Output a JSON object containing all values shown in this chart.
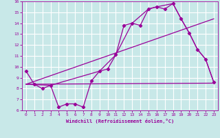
{
  "title": "",
  "xlabel": "Windchill (Refroidissement éolien,°C)",
  "background_color": "#c8e8e8",
  "grid_color": "#ffffff",
  "line_color": "#990099",
  "xlim": [
    -0.5,
    23.5
  ],
  "ylim": [
    6,
    16
  ],
  "xticks": [
    0,
    1,
    2,
    3,
    4,
    5,
    6,
    7,
    8,
    9,
    10,
    11,
    12,
    13,
    14,
    15,
    16,
    17,
    18,
    19,
    20,
    21,
    22,
    23
  ],
  "yticks": [
    6,
    7,
    8,
    9,
    10,
    11,
    12,
    13,
    14,
    15,
    16
  ],
  "series1_x": [
    0,
    1,
    2,
    3,
    4,
    5,
    6,
    7,
    8,
    9,
    10,
    11,
    12,
    13,
    14,
    15,
    16,
    17,
    18,
    19,
    20,
    21,
    22,
    23
  ],
  "series1_y": [
    9.6,
    8.4,
    8.0,
    8.3,
    6.3,
    6.6,
    6.6,
    6.3,
    8.7,
    9.6,
    9.8,
    11.1,
    13.8,
    14.0,
    13.8,
    15.3,
    15.5,
    15.3,
    15.8,
    14.4,
    13.1,
    11.6,
    10.7,
    8.6
  ],
  "series2_x": [
    0,
    23
  ],
  "series2_y": [
    8.4,
    8.5
  ],
  "series3_x": [
    0,
    3,
    9,
    11,
    13,
    15,
    16,
    18,
    19,
    20,
    21,
    22,
    23
  ],
  "series3_y": [
    8.4,
    8.3,
    9.6,
    11.1,
    14.0,
    15.3,
    15.5,
    15.8,
    14.4,
    13.1,
    11.6,
    10.7,
    8.6
  ],
  "series4_x": [
    0,
    23
  ],
  "series4_y": [
    8.4,
    14.4
  ]
}
